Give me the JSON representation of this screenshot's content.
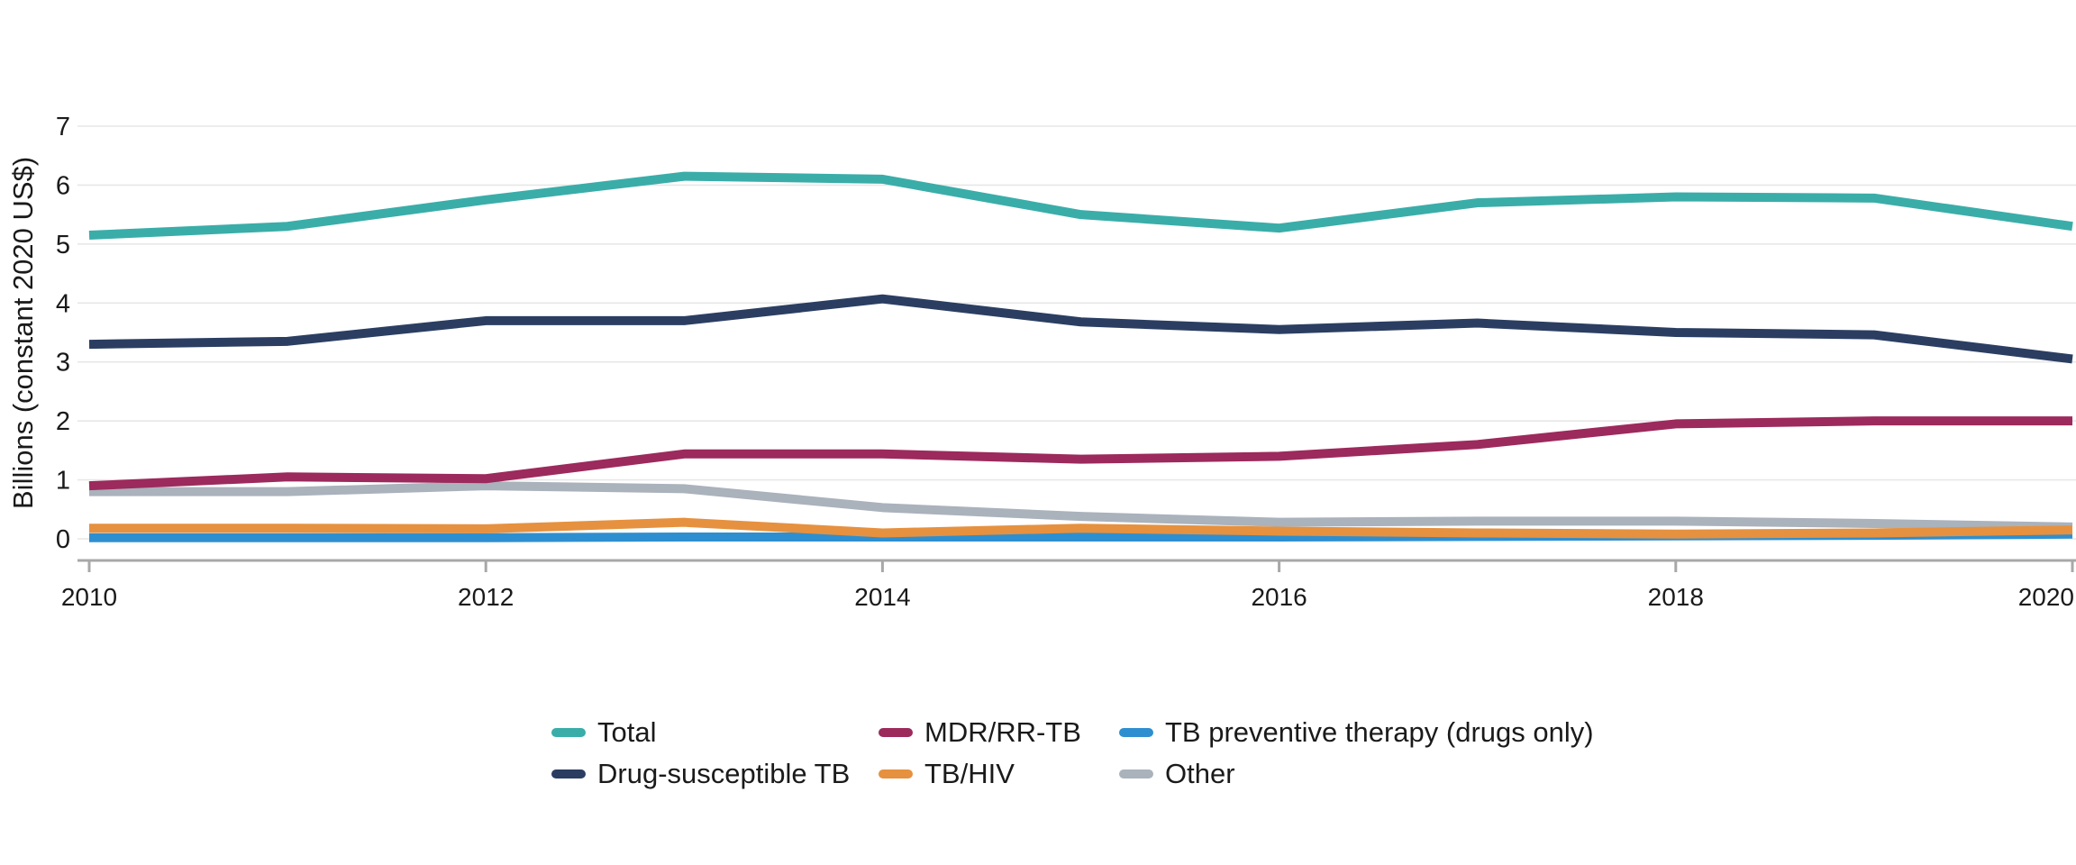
{
  "y_axis": {
    "title": "Billions (constant 2020 US$)",
    "ticks": [
      0,
      1,
      2,
      3,
      4,
      5,
      6,
      7
    ],
    "min": 0,
    "max": 7
  },
  "x_axis": {
    "min": 2010,
    "max": 2020,
    "tick_years": [
      2010,
      2012,
      2014,
      2016,
      2018,
      2020
    ],
    "tick_labels": [
      "2010",
      "2012",
      "2014",
      "2016",
      "2018",
      "2020"
    ]
  },
  "legend": {
    "position": "bottom",
    "order": [
      0,
      2,
      4,
      1,
      3,
      5
    ]
  },
  "colors": {
    "background": "#ffffff",
    "gridline": "#e7e7e7",
    "axis_line": "#a8a8a8",
    "text": "#1a1a1a"
  },
  "chart_data": {
    "type": "line",
    "title": "",
    "xlabel": "",
    "ylabel": "Billions (constant 2020 US$)",
    "ylim": [
      0,
      7
    ],
    "grid": "horizontal",
    "legend_position": "bottom",
    "x": [
      2010,
      2011,
      2012,
      2013,
      2014,
      2015,
      2016,
      2017,
      2018,
      2019,
      2020
    ],
    "series": [
      {
        "name": "Total",
        "color": "#3aada9",
        "values": [
          5.15,
          5.3,
          5.75,
          6.15,
          6.1,
          5.5,
          5.27,
          5.7,
          5.8,
          5.78,
          5.3
        ]
      },
      {
        "name": "Drug-susceptible TB",
        "color": "#2b3e62",
        "values": [
          3.3,
          3.35,
          3.7,
          3.7,
          4.07,
          3.68,
          3.55,
          3.66,
          3.5,
          3.46,
          3.05
        ]
      },
      {
        "name": "MDR/RR-TB",
        "color": "#9c2a5c",
        "values": [
          0.9,
          1.05,
          1.02,
          1.44,
          1.44,
          1.35,
          1.4,
          1.6,
          1.95,
          2.0,
          2.0
        ]
      },
      {
        "name": "TB/HIV",
        "color": "#e6913f",
        "values": [
          0.18,
          0.18,
          0.17,
          0.28,
          0.1,
          0.18,
          0.13,
          0.1,
          0.08,
          0.1,
          0.15
        ]
      },
      {
        "name": "TB preventive therapy (drugs only)",
        "color": "#2e8fd0",
        "values": [
          0.02,
          0.02,
          0.02,
          0.03,
          0.03,
          0.03,
          0.03,
          0.04,
          0.05,
          0.06,
          0.08
        ]
      },
      {
        "name": "Other",
        "color": "#aab2bc",
        "values": [
          0.8,
          0.8,
          0.9,
          0.85,
          0.53,
          0.38,
          0.28,
          0.3,
          0.3,
          0.26,
          0.2
        ]
      }
    ]
  }
}
